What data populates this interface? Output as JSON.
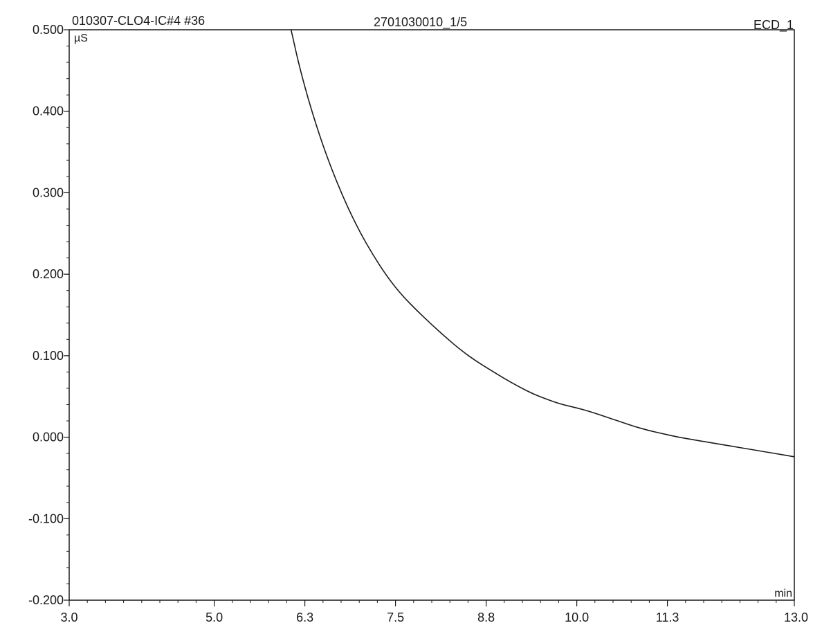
{
  "header": {
    "left": "010307-CLO4-IC#4 #36",
    "center": "2701030010_1/5",
    "right": "ECD_1"
  },
  "chart_data": {
    "type": "line",
    "title": "",
    "xlabel": "min",
    "ylabel": "µS",
    "xlim": [
      3.0,
      13.0
    ],
    "ylim": [
      -0.2,
      0.5
    ],
    "x_ticks": [
      3.0,
      5.0,
      6.25,
      7.5,
      8.75,
      10.0,
      11.25,
      13.0
    ],
    "x_tick_labels": [
      "3.0",
      "5.0",
      "6.3",
      "7.5",
      "8.8",
      "10.0",
      "11.3",
      "13.0"
    ],
    "y_ticks": [
      0.5,
      0.4,
      0.3,
      0.2,
      0.1,
      0.0,
      -0.1,
      -0.2
    ],
    "y_tick_labels": [
      "0.500",
      "0.400",
      "0.300",
      "0.200",
      "0.100",
      "0.000",
      "-0.100",
      "-0.200"
    ],
    "grid": false,
    "series": [
      {
        "x": [
          6.06,
          6.2,
          6.4,
          6.6,
          6.8,
          7.0,
          7.2,
          7.4,
          7.6,
          7.8,
          8.0,
          8.2,
          8.4,
          8.6,
          8.8,
          9.0,
          9.2,
          9.4,
          9.6,
          9.8,
          10.0,
          10.2,
          10.4,
          10.6,
          10.8,
          11.0,
          11.2,
          11.4,
          11.6,
          11.8,
          12.0,
          12.2,
          12.4,
          12.6,
          12.8,
          13.0
        ],
        "y": [
          0.5,
          0.445,
          0.384,
          0.333,
          0.29,
          0.253,
          0.222,
          0.195,
          0.173,
          0.155,
          0.138,
          0.122,
          0.107,
          0.094,
          0.083,
          0.072,
          0.062,
          0.053,
          0.046,
          0.04,
          0.036,
          0.031,
          0.025,
          0.019,
          0.013,
          0.008,
          0.004,
          0.0,
          -0.003,
          -0.006,
          -0.009,
          -0.012,
          -0.015,
          -0.018,
          -0.021,
          -0.024
        ]
      }
    ]
  }
}
